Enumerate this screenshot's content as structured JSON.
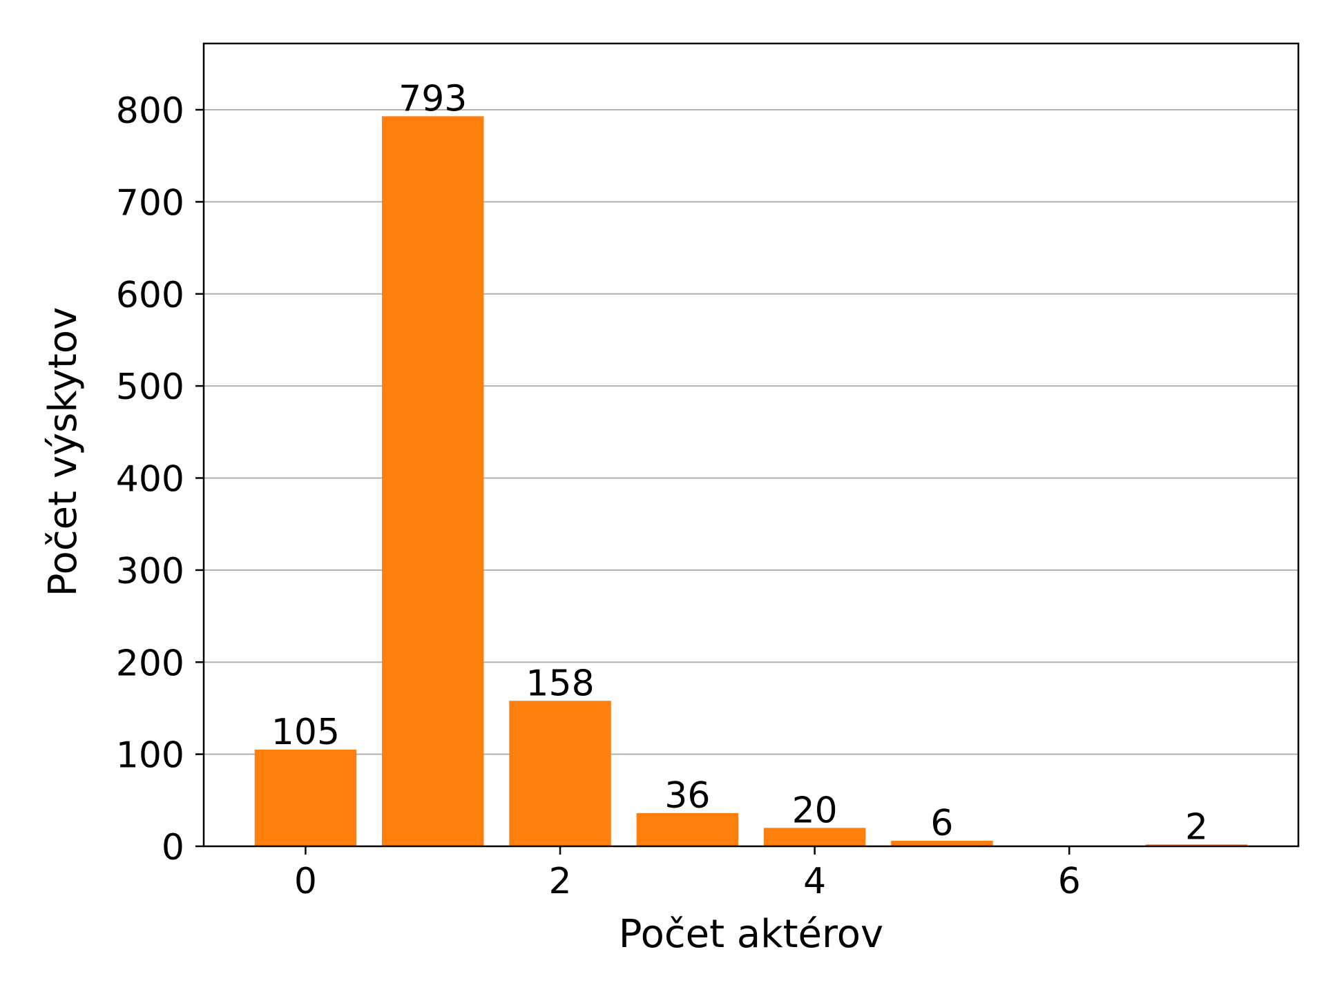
{
  "chart_data": {
    "type": "bar",
    "x": [
      0,
      1,
      2,
      3,
      4,
      5,
      7
    ],
    "values": [
      105,
      793,
      158,
      36,
      20,
      6,
      2
    ],
    "xlabel": "Počet aktérov",
    "ylabel": "Počet výskytov",
    "xlim": [
      -0.8,
      7.8
    ],
    "ylim": [
      0,
      872
    ],
    "xticks": [
      0,
      2,
      4,
      6
    ],
    "yticks": [
      0,
      100,
      200,
      300,
      400,
      500,
      600,
      700,
      800
    ],
    "grid": "y",
    "bar_color": "#ff7f0e",
    "grid_color": "#b0b0b0"
  }
}
